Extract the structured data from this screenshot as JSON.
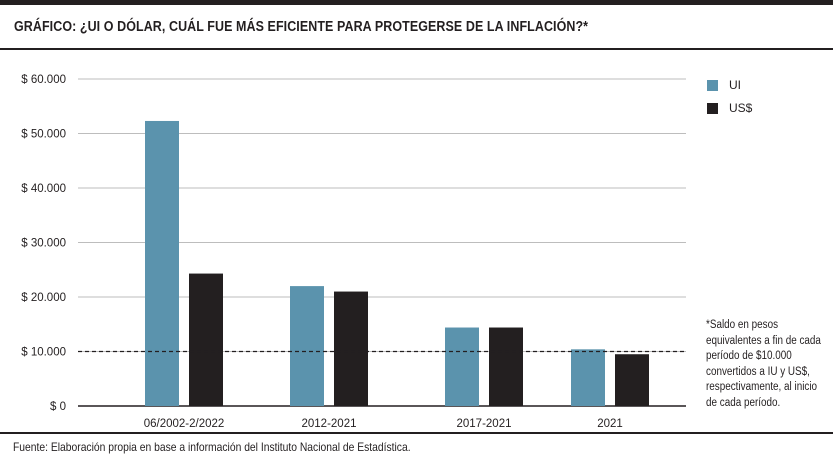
{
  "title": "GRÁFICO: ¿UI O DÓLAR, CUÁL FUE MÁS EFICIENTE PARA PROTEGERSE DE LA INFLACIÓN?*",
  "source": "Fuente: Elaboración propia en base a información del Instituto Nacional de Estadística.",
  "note": "*Saldo en pesos equivalentes a fin de cada período de $10.000 convertidos a IU y US$, respectivamente, al inicio de cada período.",
  "chart_data": {
    "type": "bar",
    "categories": [
      "06/2002-2/2022",
      "2012-2021",
      "2017-2021",
      "2021"
    ],
    "series": [
      {
        "name": "UI",
        "values": [
          52300,
          22000,
          14400,
          10400
        ],
        "color": "#5b93ad"
      },
      {
        "name": "US$",
        "values": [
          24300,
          21000,
          14400,
          9500
        ],
        "color": "#231f20"
      }
    ],
    "ylim": [
      0,
      60000
    ],
    "yticks": [
      0,
      10000,
      20000,
      30000,
      40000,
      50000,
      60000
    ],
    "ytick_labels": [
      "$ 0",
      "$ 10.000",
      "$ 20.000",
      "$ 30.000",
      "$ 40.000",
      "$ 50.000",
      "$ 60.000"
    ],
    "reference_line": 10000,
    "grid": true,
    "legend_position": "right"
  }
}
